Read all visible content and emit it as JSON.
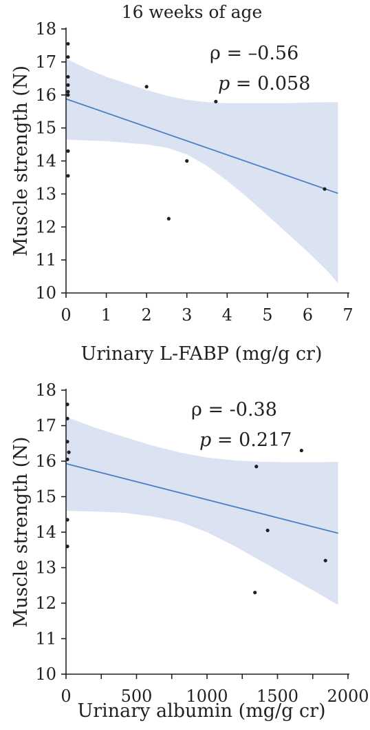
{
  "chart_data": [
    {
      "type": "scatter",
      "title": "16 weeks of age",
      "xlabel": "Urinary L-FABP (mg/g cr)",
      "ylabel": "Muscle strength  (N)",
      "xlim": [
        0,
        7
      ],
      "ylim": [
        10,
        18
      ],
      "xticks": [
        0,
        1,
        2,
        3,
        4,
        5,
        6,
        7
      ],
      "yticks": [
        10,
        11,
        12,
        13,
        14,
        15,
        16,
        17,
        18
      ],
      "annotation": {
        "rho_label": "ρ = –0.56",
        "p_symbol": "p",
        "p_value": " = 0.058"
      },
      "points": [
        {
          "x": 0.05,
          "y": 17.55
        },
        {
          "x": 0.05,
          "y": 17.15
        },
        {
          "x": 0.05,
          "y": 16.55
        },
        {
          "x": 0.05,
          "y": 16.3
        },
        {
          "x": 0.05,
          "y": 16.1
        },
        {
          "x": 0.05,
          "y": 16.0
        },
        {
          "x": 0.05,
          "y": 14.3
        },
        {
          "x": 0.05,
          "y": 13.55
        },
        {
          "x": 2.0,
          "y": 16.25
        },
        {
          "x": 2.55,
          "y": 12.25
        },
        {
          "x": 3.0,
          "y": 14.0
        },
        {
          "x": 3.72,
          "y": 15.8
        },
        {
          "x": 6.42,
          "y": 13.15
        }
      ],
      "fit": {
        "x": [
          0,
          6.75
        ],
        "y": [
          15.88,
          13.02
        ]
      },
      "band": {
        "x": [
          0,
          0.5,
          1,
          1.5,
          2,
          2.5,
          3,
          3.5,
          4,
          4.5,
          5,
          5.5,
          6,
          6.5,
          6.75
        ],
        "upper": [
          17.1,
          16.8,
          16.55,
          16.35,
          16.15,
          15.98,
          15.85,
          15.78,
          15.75,
          15.75,
          15.75,
          15.75,
          15.77,
          15.78,
          15.78
        ],
        "lower": [
          14.65,
          14.62,
          14.6,
          14.55,
          14.5,
          14.4,
          14.2,
          13.85,
          13.4,
          12.9,
          12.35,
          11.8,
          11.25,
          10.65,
          10.3
        ]
      }
    },
    {
      "type": "scatter",
      "title": "",
      "xlabel": "Urinary albumin (mg/g cr)",
      "ylabel": "Muscle strength  (N)",
      "xlim": [
        0,
        2000
      ],
      "ylim": [
        10,
        18
      ],
      "xticks": [
        0,
        500,
        1000,
        1500,
        2000
      ],
      "xminorticks": [
        250,
        750,
        1250,
        1750
      ],
      "yticks": [
        10,
        11,
        12,
        13,
        14,
        15,
        16,
        17,
        18
      ],
      "annotation": {
        "rho_label": "ρ  =  -0.38",
        "p_symbol": "p",
        "p_value": " = 0.217"
      },
      "points": [
        {
          "x": 10,
          "y": 17.6
        },
        {
          "x": 10,
          "y": 17.2
        },
        {
          "x": 10,
          "y": 16.55
        },
        {
          "x": 20,
          "y": 16.25
        },
        {
          "x": 10,
          "y": 16.05
        },
        {
          "x": 10,
          "y": 14.35
        },
        {
          "x": 10,
          "y": 13.6
        },
        {
          "x": 1340,
          "y": 12.3
        },
        {
          "x": 1350,
          "y": 15.85
        },
        {
          "x": 1430,
          "y": 14.05
        },
        {
          "x": 1670,
          "y": 16.3
        },
        {
          "x": 1840,
          "y": 13.2
        }
      ],
      "fit": {
        "x": [
          0,
          1930
        ],
        "y": [
          15.93,
          13.97
        ]
      },
      "band": {
        "x": [
          0,
          200,
          400,
          600,
          800,
          1000,
          1200,
          1400,
          1600,
          1800,
          1930
        ],
        "upper": [
          17.25,
          16.95,
          16.7,
          16.45,
          16.25,
          16.1,
          16.02,
          15.98,
          15.97,
          15.97,
          15.98
        ],
        "lower": [
          14.6,
          14.58,
          14.55,
          14.45,
          14.3,
          14.0,
          13.6,
          13.15,
          12.7,
          12.25,
          11.95
        ]
      }
    }
  ]
}
